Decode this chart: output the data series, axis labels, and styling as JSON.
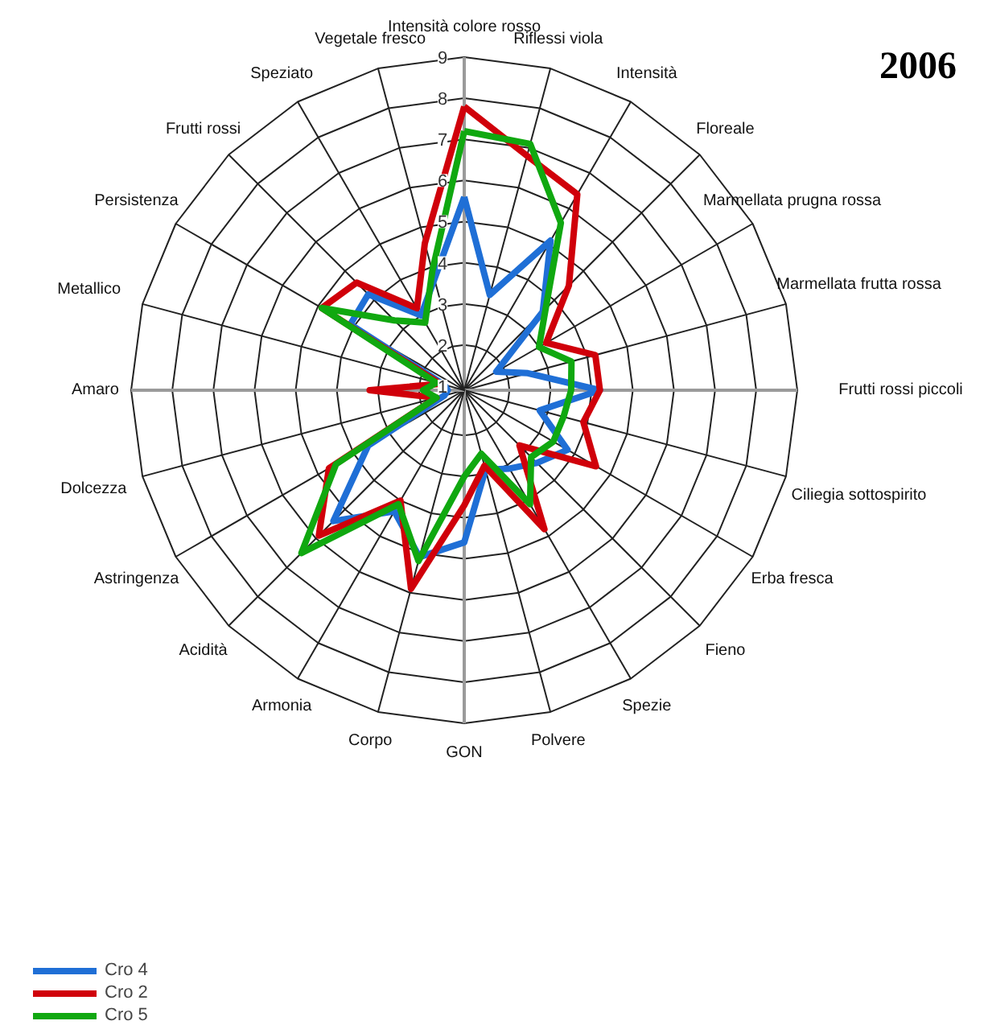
{
  "chart_data": {
    "type": "radar",
    "title": "2006",
    "categories": [
      "Intensità colore rosso",
      "Riflessi viola",
      "Intensità",
      "Floreale",
      "Marmellata prugna rossa",
      "Marmellata frutta rossa",
      "Frutti rossi piccoli",
      "Ciliegia sottospirito",
      "Erba fresca",
      "Fieno",
      "Spezie",
      "Polvere",
      "GON",
      "Corpo",
      "Armonia",
      "Acidità",
      "Astringenza",
      "Dolcezza",
      "Amaro",
      "Metallico",
      "Persistenza",
      "Frutti rossi",
      "Speziato",
      "Vegetale fresco"
    ],
    "series": [
      {
        "name": "Cro 4",
        "color": "#1f6fd6",
        "values": [
          5.6,
          3.3,
          5.1,
          3.6,
          1.8,
          2.5,
          4.2,
          2.8,
          3.8,
          3.4,
          3.1,
          2.9,
          4.6,
          5.1,
          4.3,
          5.4,
          3.6,
          1.4,
          1.3,
          1.4,
          4.1,
          4.2,
          3.0,
          3.7
        ]
      },
      {
        "name": "Cro 2",
        "color": "#d0000a",
        "values": [
          7.8,
          6.8,
          6.4,
          4.5,
          3.2,
          4.2,
          4.2,
          3.9,
          4.6,
          2.8,
          4.8,
          2.8,
          3.7,
          5.9,
          4.0,
          5.9,
          4.7,
          1.6,
          3.2,
          1.5,
          4.9,
          4.6,
          3.2,
          4.6
        ]
      },
      {
        "name": "Cro 5",
        "color": "#10a810",
        "values": [
          7.2,
          7.1,
          5.6,
          3.7,
          3.0,
          3.6,
          3.5,
          3.4,
          3.4,
          3.2,
          4.1,
          2.5,
          3.0,
          5.2,
          4.1,
          6.5,
          4.5,
          1.6,
          1.9,
          1.6,
          4.9,
          3.3,
          2.8,
          3.9
        ]
      }
    ],
    "ylim": [
      0.9,
      9
    ],
    "yticks": [
      1,
      2,
      3,
      4,
      5,
      6,
      7,
      8,
      9
    ],
    "grid": true,
    "legend": "bottom left"
  }
}
